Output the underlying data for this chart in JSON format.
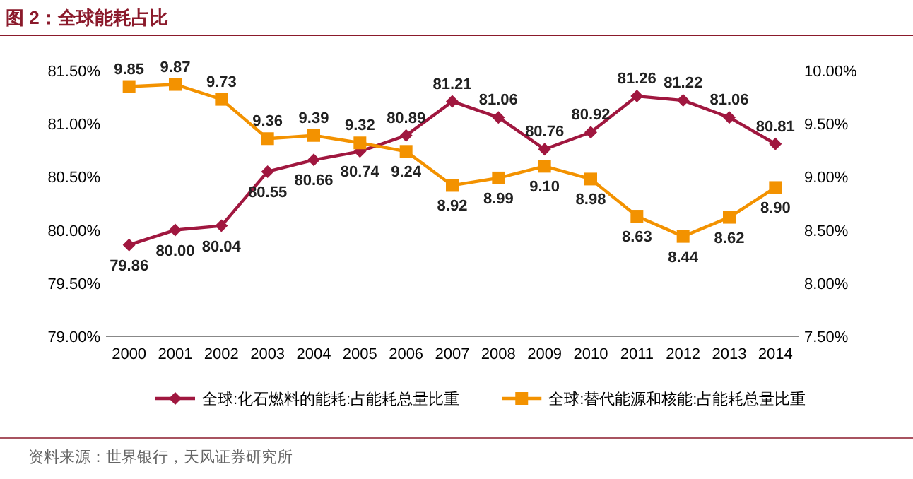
{
  "chart_data": {
    "type": "line",
    "title": "图 2：全球能耗占比",
    "categories": [
      "2000",
      "2001",
      "2002",
      "2003",
      "2004",
      "2005",
      "2006",
      "2007",
      "2008",
      "2009",
      "2010",
      "2011",
      "2012",
      "2013",
      "2014"
    ],
    "series": [
      {
        "name": "全球:化石燃料的能耗:占能耗总量比重",
        "color": "#a0173f",
        "marker": "diamond",
        "axis": "y",
        "values": [
          79.86,
          80.0,
          80.04,
          80.55,
          80.66,
          80.74,
          80.89,
          81.21,
          81.06,
          80.76,
          80.92,
          81.26,
          81.22,
          81.06,
          80.81
        ],
        "value_labels": [
          "79.86",
          "80.00",
          "80.04",
          "80.55",
          "80.66",
          "80.74",
          "80.89",
          "81.21",
          "81.06",
          "80.76",
          "80.92",
          "81.26",
          "81.22",
          "81.06",
          "80.81"
        ]
      },
      {
        "name": "全球:替代能源和核能:占能耗总量比重",
        "color": "#f39200",
        "marker": "square",
        "axis": "y2",
        "values": [
          9.85,
          9.87,
          9.73,
          9.36,
          9.39,
          9.32,
          9.24,
          8.92,
          8.99,
          9.1,
          8.98,
          8.63,
          8.44,
          8.62,
          8.9
        ],
        "value_labels": [
          "9.85",
          "9.87",
          "9.73",
          "9.36",
          "9.39",
          "9.32",
          "9.24",
          "8.92",
          "8.99",
          "9.10",
          "8.98",
          "8.63",
          "8.44",
          "8.62",
          "8.90"
        ]
      }
    ],
    "ylim": [
      79,
      81.5
    ],
    "yticks": [
      {
        "value": 79,
        "label": "79.00%"
      },
      {
        "value": 79.5,
        "label": "79.50%"
      },
      {
        "value": 80,
        "label": "80.00%"
      },
      {
        "value": 80.5,
        "label": "80.50%"
      },
      {
        "value": 81,
        "label": "81.00%"
      },
      {
        "value": 81.5,
        "label": "81.50%"
      }
    ],
    "y2lim": [
      7.5,
      10
    ],
    "y2ticks": [
      {
        "value": 7.5,
        "label": "7.50%"
      },
      {
        "value": 8,
        "label": "8.00%"
      },
      {
        "value": 8.5,
        "label": "8.50%"
      },
      {
        "value": 9,
        "label": "9.00%"
      },
      {
        "value": 9.5,
        "label": "9.50%"
      },
      {
        "value": 10,
        "label": "10.00%"
      }
    ],
    "legend": "bottom",
    "grid": false,
    "annotations": [
      "资料来源：世界银行，天风证券研究所"
    ]
  }
}
